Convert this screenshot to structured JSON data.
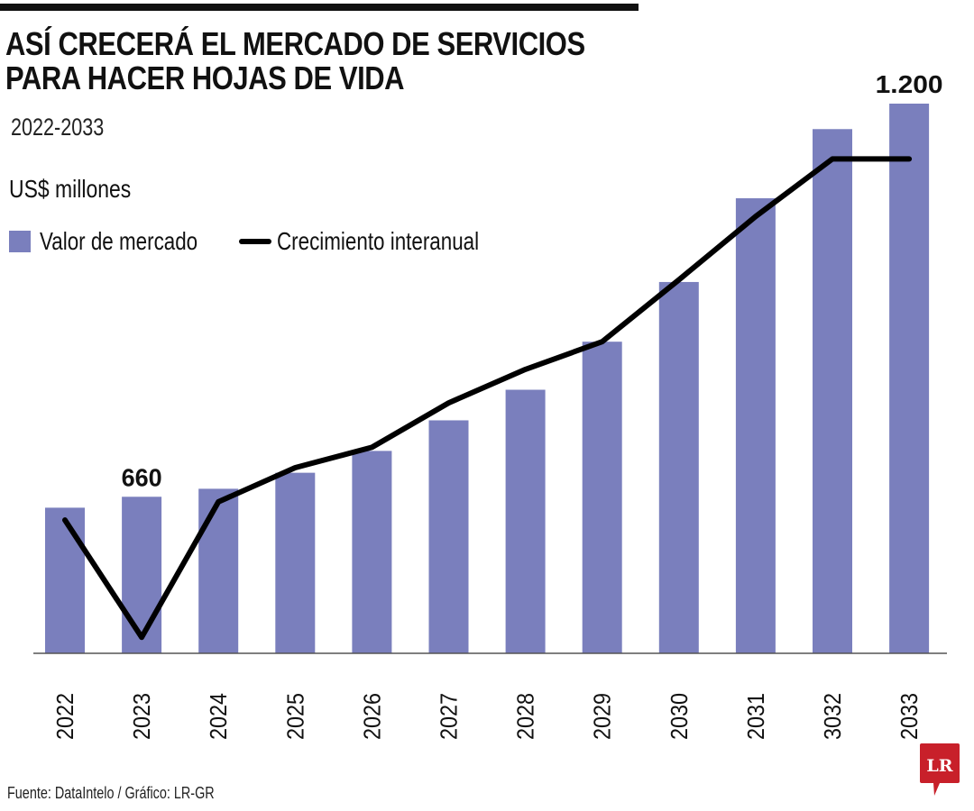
{
  "header": {
    "title_line1": "ASÍ CRECERÁ EL MERCADO DE SERVICIOS",
    "title_line2": "PARA HACER HOJAS DE VIDA",
    "subtitle": "2022-2033",
    "units": "US$ millones"
  },
  "legend": {
    "bar_label": "Valor de mercado",
    "line_label": "Crecimiento interanual"
  },
  "colors": {
    "bar": "#7a7fbd",
    "line": "#000000",
    "logo": "#c8202a"
  },
  "footer": {
    "source": "Fuente: DataIntelo / Gráfico: LR-GR",
    "logo_text": "LR"
  },
  "chart_data": {
    "type": "bar",
    "title": "ASÍ CRECERÁ EL MERCADO DE SERVICIOS PARA HACER HOJAS DE VIDA",
    "subtitle": "2022-2033",
    "xlabel": "",
    "ylabel": "US$ millones",
    "ylim": [
      445,
      1200
    ],
    "grid": false,
    "legend_position": "top-left",
    "categories": [
      "2022",
      "2023",
      "2024",
      "2025",
      "2026",
      "2027",
      "2028",
      "2029",
      "2030",
      "2031",
      "3032",
      "2033"
    ],
    "series": [
      {
        "name": "Valor de mercado",
        "type": "bar",
        "values": [
          645,
          660,
          671,
          693,
          723,
          765,
          807,
          873,
          955,
          1070,
          1165,
          1200
        ]
      },
      {
        "name": "Crecimiento interanual",
        "type": "line",
        "values": [
          628,
          467,
          653,
          700,
          728,
          789,
          835,
          873,
          958,
          1045,
          1124,
          1124
        ]
      }
    ],
    "annotations": [
      {
        "category": "2023",
        "series": "Valor de mercado",
        "text": "660"
      },
      {
        "category": "2033",
        "series": "Valor de mercado",
        "text": "1.200"
      }
    ]
  }
}
